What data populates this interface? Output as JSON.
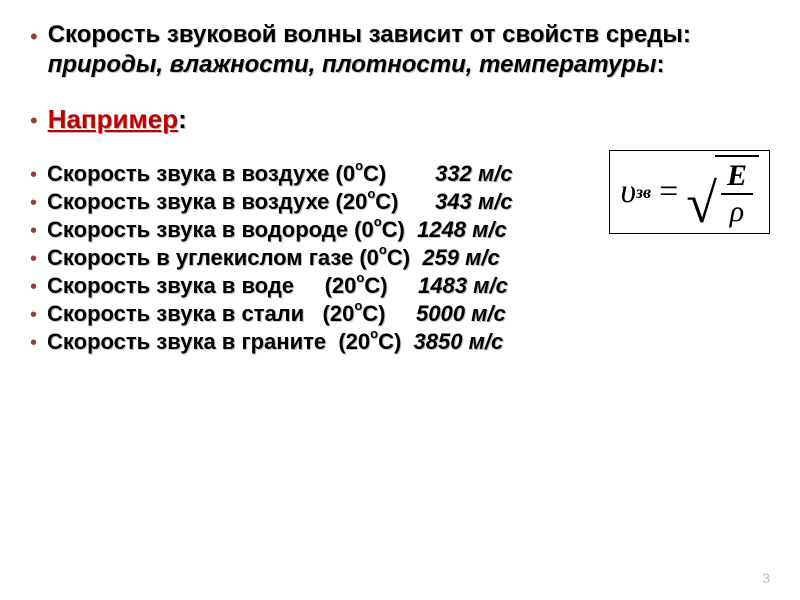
{
  "intro": {
    "line1": "Скорость звуковой волны зависит от свойств среды: ",
    "italic": "природы, влажности, плотности, температуры",
    "colon": ":"
  },
  "example": {
    "label": "Например",
    "colon": ":"
  },
  "formula": {
    "symbol": "υ",
    "subscript": "зв",
    "eq": "=",
    "numerator": "E",
    "denominator": "ρ"
  },
  "rows": [
    {
      "label": "Скорость звука в воздухе ",
      "t_open": "(0",
      "t_deg": "о",
      "t_close": "С)        ",
      "value": "332 м/с"
    },
    {
      "label": "Скорость звука в воздухе ",
      "t_open": "(20",
      "t_deg": "о",
      "t_close": "С)      ",
      "value": "343 м/с"
    },
    {
      "label": "Скорость звука в водороде ",
      "t_open": "(0",
      "t_deg": "о",
      "t_close": "С)  ",
      "value": "1248 м/с"
    },
    {
      "label": "Скорость в углекислом газе ",
      "t_open": "(0",
      "t_deg": "о",
      "t_close": "С)  ",
      "value": "259 м/с"
    },
    {
      "label": "Скорость звука в воде     ",
      "t_open": "(20",
      "t_deg": "о",
      "t_close": "С)     ",
      "value": "1483 м/с"
    },
    {
      "label": "Скорость звука в стали   ",
      "t_open": "(20",
      "t_deg": "о",
      "t_close": "С)     ",
      "value": "5000 м/с"
    },
    {
      "label": "Скорость звука в граните  ",
      "t_open": "(20",
      "t_deg": "о",
      "t_close": "С)  ",
      "value": "3850 м/с"
    }
  ],
  "page_number": "3",
  "colors": {
    "bullet": "#9e3a3a",
    "red": "#c00000",
    "shadow": "#c0c0c0",
    "pagenum": "#bfbfbf"
  }
}
